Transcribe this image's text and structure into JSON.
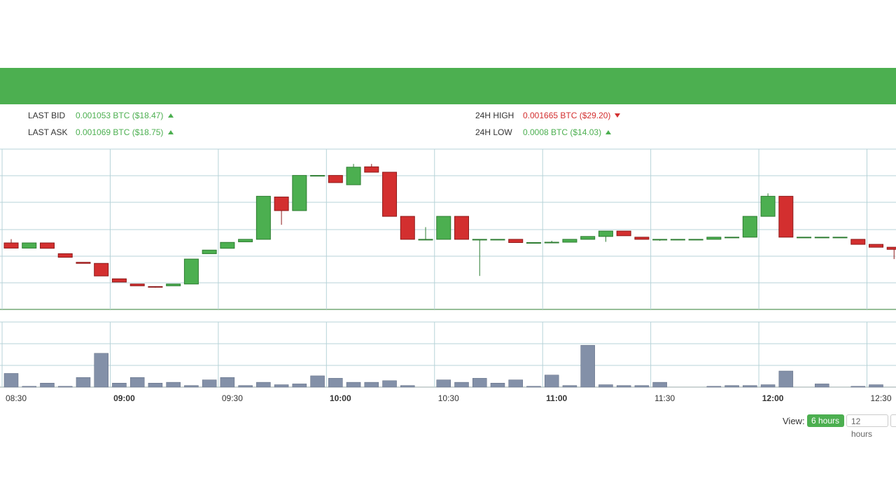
{
  "stats": {
    "last_bid_label": "LAST BID",
    "last_bid_value": "0.001053 BTC ($18.47)",
    "last_ask_label": "LAST ASK",
    "last_ask_value": "0.001069 BTC ($18.75)",
    "high_label": "24H HIGH",
    "high_value": "0.001665 BTC ($29.20)",
    "low_label": "24H LOW",
    "low_value": "0.0008 BTC ($14.03)"
  },
  "view": {
    "label": "View:",
    "options": [
      "6 hours",
      "12 hours"
    ],
    "active": "6 hours"
  },
  "colors": {
    "brand": "#4caf50",
    "up": "#4caf50",
    "down": "#d32f2f",
    "volume": "#8390a8",
    "grid": "#b7d3d8"
  },
  "chart_data": {
    "type": "candlestick",
    "interval_minutes": 5,
    "x_tick_labels": [
      "08:30",
      "09:00",
      "09:30",
      "10:00",
      "10:30",
      "11:00",
      "11:30",
      "12:00",
      "12:30"
    ],
    "bold_ticks": [
      "09:00",
      "10:00",
      "11:00",
      "12:00"
    ],
    "candles": [
      {
        "t": "08:30",
        "o": 0.74,
        "h": 0.95,
        "l": 0.45,
        "c": 0.45,
        "v": 17
      },
      {
        "t": "08:35",
        "o": 0.45,
        "h": 0.74,
        "l": 0.45,
        "c": 0.74,
        "v": 1
      },
      {
        "t": "08:40",
        "o": 0.74,
        "h": 0.74,
        "l": 0.44,
        "c": 0.44,
        "v": 5
      },
      {
        "t": "08:45",
        "o": 0.14,
        "h": 0.14,
        "l": -0.06,
        "c": -0.06,
        "v": 1
      },
      {
        "t": "08:50",
        "o": -0.34,
        "h": -0.34,
        "l": -0.4,
        "c": -0.4,
        "v": 12
      },
      {
        "t": "08:55",
        "o": -0.4,
        "h": -0.4,
        "l": -1.1,
        "c": -1.1,
        "v": 42
      },
      {
        "t": "09:00",
        "o": -1.26,
        "h": -1.26,
        "l": -1.44,
        "c": -1.44,
        "v": 5
      },
      {
        "t": "09:05",
        "o": -1.55,
        "h": -1.55,
        "l": -1.65,
        "c": -1.65,
        "v": 12
      },
      {
        "t": "09:10",
        "o": -1.69,
        "h": -1.69,
        "l": -1.75,
        "c": -1.71,
        "v": 5
      },
      {
        "t": "09:15",
        "o": -1.65,
        "h": -1.55,
        "l": -1.65,
        "c": -1.55,
        "v": 6
      },
      {
        "t": "09:20",
        "o": -1.55,
        "h": -0.16,
        "l": -1.55,
        "c": -0.16,
        "v": 2
      },
      {
        "t": "09:25",
        "o": 0.14,
        "h": 0.34,
        "l": 0.14,
        "c": 0.34,
        "v": 9
      },
      {
        "t": "09:30",
        "o": 0.44,
        "h": 0.77,
        "l": 0.44,
        "c": 0.77,
        "v": 12
      },
      {
        "t": "09:35",
        "o": 0.8,
        "h": 0.94,
        "l": 0.8,
        "c": 0.94,
        "v": 2
      },
      {
        "t": "09:40",
        "o": 0.94,
        "h": 3.34,
        "l": 0.94,
        "c": 3.34,
        "v": 6
      },
      {
        "t": "09:45",
        "o": 3.3,
        "h": 3.3,
        "l": 1.75,
        "c": 2.54,
        "v": 3
      },
      {
        "t": "09:50",
        "o": 2.54,
        "h": 4.5,
        "l": 2.54,
        "c": 4.5,
        "v": 4
      },
      {
        "t": "09:55",
        "o": 4.5,
        "h": 4.5,
        "l": 4.5,
        "c": 4.5,
        "v": 14
      },
      {
        "t": "10:00",
        "o": 4.5,
        "h": 4.5,
        "l": 4.1,
        "c": 4.1,
        "v": 11
      },
      {
        "t": "10:05",
        "o": 3.98,
        "h": 5.14,
        "l": 3.98,
        "c": 4.96,
        "v": 6
      },
      {
        "t": "10:10",
        "o": 4.98,
        "h": 5.14,
        "l": 4.68,
        "c": 4.68,
        "v": 6
      },
      {
        "t": "10:15",
        "o": 4.68,
        "h": 4.68,
        "l": 2.22,
        "c": 2.22,
        "v": 8
      },
      {
        "t": "10:20",
        "o": 2.22,
        "h": 2.22,
        "l": 0.94,
        "c": 0.94,
        "v": 2
      },
      {
        "t": "10:25",
        "o": 0.94,
        "h": 1.62,
        "l": 0.94,
        "c": 0.94,
        "v": 0
      },
      {
        "t": "10:30",
        "o": 0.94,
        "h": 2.22,
        "l": 0.94,
        "c": 2.22,
        "v": 9
      },
      {
        "t": "10:35",
        "o": 2.22,
        "h": 2.22,
        "l": 0.94,
        "c": 0.94,
        "v": 6
      },
      {
        "t": "10:40",
        "o": 0.94,
        "h": 0.94,
        "l": -1.1,
        "c": 0.94,
        "v": 11
      },
      {
        "t": "10:45",
        "o": 0.94,
        "h": 0.94,
        "l": 0.94,
        "c": 0.94,
        "v": 5
      },
      {
        "t": "10:50",
        "o": 0.94,
        "h": 0.94,
        "l": 0.76,
        "c": 0.76,
        "v": 9
      },
      {
        "t": "10:55",
        "o": 0.76,
        "h": 0.76,
        "l": 0.74,
        "c": 0.76,
        "v": 1
      },
      {
        "t": "11:00",
        "o": 0.76,
        "h": 0.86,
        "l": 0.76,
        "c": 0.78,
        "v": 15
      },
      {
        "t": "11:05",
        "o": 0.78,
        "h": 0.94,
        "l": 0.78,
        "c": 0.94,
        "v": 2
      },
      {
        "t": "11:10",
        "o": 0.94,
        "h": 1.1,
        "l": 0.94,
        "c": 1.1,
        "v": 52
      },
      {
        "t": "11:15",
        "o": 1.1,
        "h": 1.4,
        "l": 0.8,
        "c": 1.4,
        "v": 3
      },
      {
        "t": "11:20",
        "o": 1.4,
        "h": 1.4,
        "l": 1.14,
        "c": 1.14,
        "v": 2
      },
      {
        "t": "11:25",
        "o": 1.06,
        "h": 1.06,
        "l": 0.94,
        "c": 0.94,
        "v": 2
      },
      {
        "t": "11:30",
        "o": 0.94,
        "h": 0.94,
        "l": 0.86,
        "c": 0.94,
        "v": 6
      },
      {
        "t": "11:35",
        "o": 0.94,
        "h": 0.94,
        "l": 0.94,
        "c": 0.94,
        "v": 0
      },
      {
        "t": "11:40",
        "o": 0.94,
        "h": 0.94,
        "l": 0.94,
        "c": 0.94,
        "v": 0
      },
      {
        "t": "11:45",
        "o": 0.94,
        "h": 1.06,
        "l": 0.94,
        "c": 1.06,
        "v": 1
      },
      {
        "t": "11:50",
        "o": 1.06,
        "h": 1.06,
        "l": 1.06,
        "c": 1.06,
        "v": 2
      },
      {
        "t": "11:55",
        "o": 1.06,
        "h": 2.22,
        "l": 1.06,
        "c": 2.22,
        "v": 2
      },
      {
        "t": "12:00",
        "o": 2.22,
        "h": 3.5,
        "l": 2.22,
        "c": 3.34,
        "v": 3
      },
      {
        "t": "12:05",
        "o": 3.34,
        "h": 3.34,
        "l": 1.06,
        "c": 1.06,
        "v": 20
      },
      {
        "t": "12:10",
        "o": 1.06,
        "h": 1.06,
        "l": 1.06,
        "c": 1.06,
        "v": 0
      },
      {
        "t": "12:15",
        "o": 1.06,
        "h": 1.06,
        "l": 1.06,
        "c": 1.06,
        "v": 4
      },
      {
        "t": "12:20",
        "o": 1.06,
        "h": 1.06,
        "l": 1.06,
        "c": 1.06,
        "v": 0
      },
      {
        "t": "12:25",
        "o": 0.94,
        "h": 0.94,
        "l": 0.66,
        "c": 0.66,
        "v": 1
      },
      {
        "t": "12:30",
        "o": 0.66,
        "h": 0.66,
        "l": 0.5,
        "c": 0.5,
        "v": 3
      },
      {
        "t": "12:35",
        "o": 0.5,
        "h": 0.5,
        "l": -0.16,
        "c": 0.38,
        "v": 0
      }
    ]
  }
}
